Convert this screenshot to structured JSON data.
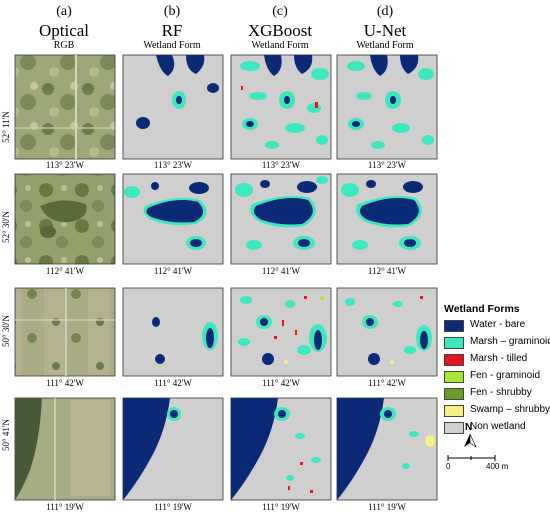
{
  "columns": [
    {
      "letter": "(a)",
      "title": "Optical",
      "subtitle": "RGB"
    },
    {
      "letter": "(b)",
      "title": "RF",
      "subtitle": "Wetland Form"
    },
    {
      "letter": "(c)",
      "title": "XGBoost",
      "subtitle": "Wetland Form"
    },
    {
      "letter": "(d)",
      "title": "U-Net",
      "subtitle": "Wetland Form"
    }
  ],
  "rows": [
    {
      "latitude": "52° 11'N",
      "longitude": "113° 23'W"
    },
    {
      "latitude": "52° 30'N",
      "longitude": "112° 41'W"
    },
    {
      "latitude": "50° 30'N",
      "longitude": "111° 42'W"
    },
    {
      "latitude": "50° 41'N",
      "longitude": "111° 19'W"
    }
  ],
  "legend": {
    "title": "Wetland Forms",
    "items": [
      {
        "label": "Water - bare",
        "color": "#0a2a78"
      },
      {
        "label": "Marsh – graminoid",
        "color": "#3de8c0"
      },
      {
        "label": "Marsh - tilled",
        "color": "#e8161c"
      },
      {
        "label": "Fen - graminoid",
        "color": "#a6e63a"
      },
      {
        "label": "Fen - shrubby",
        "color": "#6a9a2a"
      },
      {
        "label": "Swamp – shrubby",
        "color": "#f5f08a"
      },
      {
        "label": "Non wetland",
        "color": "#cfcfcf"
      }
    ]
  },
  "north_arrow": "N",
  "scale_bar": {
    "start": "0",
    "end": "400 m"
  },
  "colors": {
    "water": "#0a2a78",
    "marsh": "#3de8c0",
    "tilled": "#e8161c",
    "fen_shrubby": "#6a9a2a",
    "swamp": "#f5f08a",
    "non_wetland": "#cfcfcf",
    "optical_base": "#9aa276"
  }
}
